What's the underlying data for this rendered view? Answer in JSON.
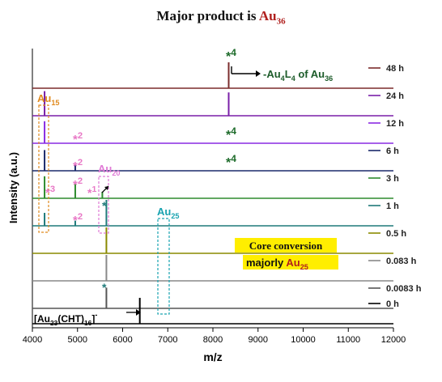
{
  "title": {
    "prefix": "Major product is ",
    "highlight": "Au",
    "highlight_sub": "36"
  },
  "chart_data": {
    "type": "line",
    "xlabel": "m/z",
    "ylabel": "Intensity (a.u.)",
    "xlim": [
      4000,
      12000
    ],
    "xticks": [
      4000,
      5000,
      6000,
      7000,
      8000,
      9000,
      10000,
      11000,
      12000
    ],
    "series": [
      {
        "name": "48 h",
        "color": "#7b2c2c",
        "peaks": [
          [
            8350,
            1.0
          ]
        ]
      },
      {
        "name": "24 h",
        "color": "#7a1fa8",
        "peaks": [
          [
            4270,
            0.95
          ],
          [
            8350,
            0.9
          ]
        ]
      },
      {
        "name": "12 h",
        "color": "#8a2be2",
        "peaks": [
          [
            4270,
            0.85
          ]
        ]
      },
      {
        "name": "6 h",
        "color": "#1b2a6b",
        "peaks": [
          [
            4270,
            0.8
          ],
          [
            4950,
            0.25
          ]
        ]
      },
      {
        "name": "3 h",
        "color": "#2e8b2e",
        "peaks": [
          [
            4270,
            0.85
          ],
          [
            4950,
            0.55
          ],
          [
            5550,
            0.25
          ]
        ]
      },
      {
        "name": "1 h",
        "color": "#1f7a7a",
        "peaks": [
          [
            4270,
            0.5
          ],
          [
            4950,
            0.2
          ],
          [
            5640,
            1.0
          ]
        ]
      },
      {
        "name": "0.5 h",
        "color": "#8a8a00",
        "peaks": [
          [
            5640,
            1.0
          ]
        ]
      },
      {
        "name": "0.083 h",
        "color": "#888888",
        "peaks": [
          [
            5640,
            1.0
          ]
        ]
      },
      {
        "name": "0.0083 h",
        "color": "#555555",
        "peaks": [
          [
            5640,
            0.8
          ]
        ]
      },
      {
        "name": "0 h",
        "color": "#000000",
        "peaks": [
          [
            6380,
            1.0
          ]
        ]
      }
    ],
    "annotations": {
      "star4_a": "*4",
      "star4_b": "*4",
      "star4_c": "*4",
      "loss_label": "-Au4L4 of Au36",
      "au15": "Au15",
      "au20": "Au20",
      "au25": "Au25",
      "star2_a": "*2",
      "star2_b": "*2",
      "star2_c": "*2",
      "star2_d": "*2",
      "star3": "*3",
      "star1": "*1",
      "core_line1": "Core conversion",
      "core_line2": "majorly ",
      "core_au": "Au",
      "core_sub": "25",
      "precursor": "[Au23(CHT)16]-"
    },
    "colors": {
      "au15_box": "#e08a1e",
      "au20_box": "#e07ad6",
      "au25_box": "#19a3b0",
      "star_pink": "#e878c6",
      "star_green": "#1d6b2a",
      "highlight_bg": "#ffee00",
      "au_red": "#b0201e"
    }
  }
}
